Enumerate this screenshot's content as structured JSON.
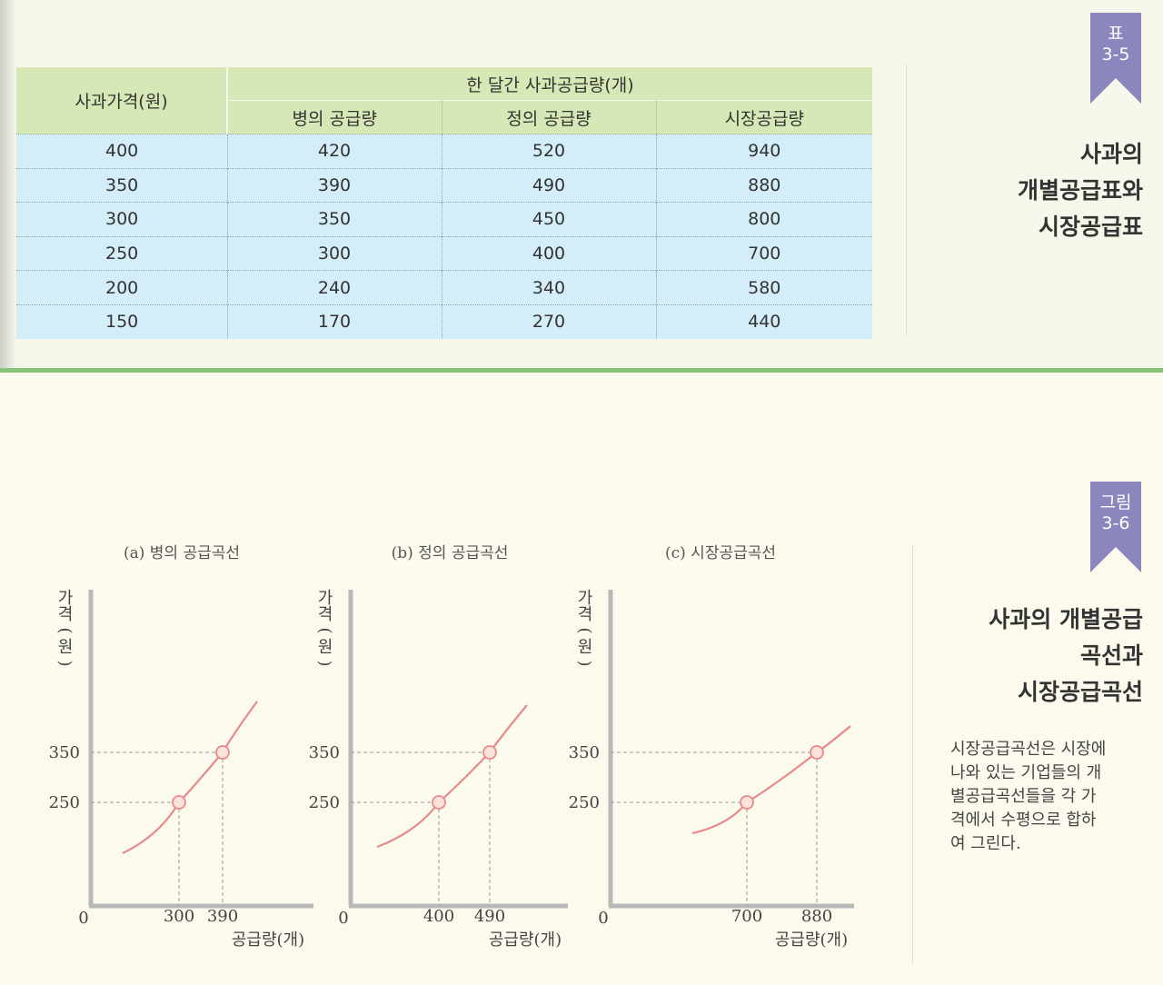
{
  "table": {
    "tag_line1": "표",
    "tag_line2": "3-5",
    "title_lines": [
      "사과의",
      "개별공급표와",
      "시장공급표"
    ],
    "price_header": "사과가격(원)",
    "group_header": "한 달간 사과공급량(개)",
    "col_headers": [
      "병의 공급량",
      "정의 공급량",
      "시장공급량"
    ],
    "rows": [
      {
        "price": "400",
        "b": "420",
        "j": "520",
        "m": "940"
      },
      {
        "price": "350",
        "b": "390",
        "j": "490",
        "m": "880"
      },
      {
        "price": "300",
        "b": "350",
        "j": "450",
        "m": "800"
      },
      {
        "price": "250",
        "b": "300",
        "j": "400",
        "m": "700"
      },
      {
        "price": "200",
        "b": "240",
        "j": "340",
        "m": "580"
      },
      {
        "price": "150",
        "b": "170",
        "j": "270",
        "m": "440"
      }
    ]
  },
  "figure": {
    "tag_line1": "그림",
    "tag_line2": "3-6",
    "title_lines": [
      "사과의 개별공급",
      "곡선과",
      "시장공급곡선"
    ],
    "caption_lines": [
      "시장공급곡선은 시장에",
      "나와 있는 기업들의 개",
      "별공급곡선들을 각 가",
      "격에서 수평으로 합하",
      "여 그린다."
    ],
    "colors": {
      "curve": "#e88a8a",
      "point_fill": "#fbe3d8",
      "axis": "#b9b9b9",
      "guide": "#9a9a9a"
    }
  },
  "chart_data": [
    {
      "type": "line",
      "title": "(a) 병의 공급곡선",
      "ylabel": "가격(원)",
      "xlabel": "공급량(개)",
      "origin_label": "0",
      "yticks": [
        "350",
        "250"
      ],
      "xticks": [
        "300",
        "390"
      ],
      "points": [
        {
          "x": 300,
          "y": 250
        },
        {
          "x": 390,
          "y": 350
        }
      ]
    },
    {
      "type": "line",
      "title": "(b) 정의 공급곡선",
      "ylabel": "가격(원)",
      "xlabel": "공급량(개)",
      "origin_label": "0",
      "yticks": [
        "350",
        "250"
      ],
      "xticks": [
        "400",
        "490"
      ],
      "points": [
        {
          "x": 400,
          "y": 250
        },
        {
          "x": 490,
          "y": 350
        }
      ]
    },
    {
      "type": "line",
      "title": "(c) 시장공급곡선",
      "ylabel": "가격(원)",
      "xlabel": "공급량(개)",
      "origin_label": "0",
      "yticks": [
        "350",
        "250"
      ],
      "xticks": [
        "700",
        "880"
      ],
      "points": [
        {
          "x": 700,
          "y": 250
        },
        {
          "x": 880,
          "y": 350
        }
      ]
    }
  ]
}
